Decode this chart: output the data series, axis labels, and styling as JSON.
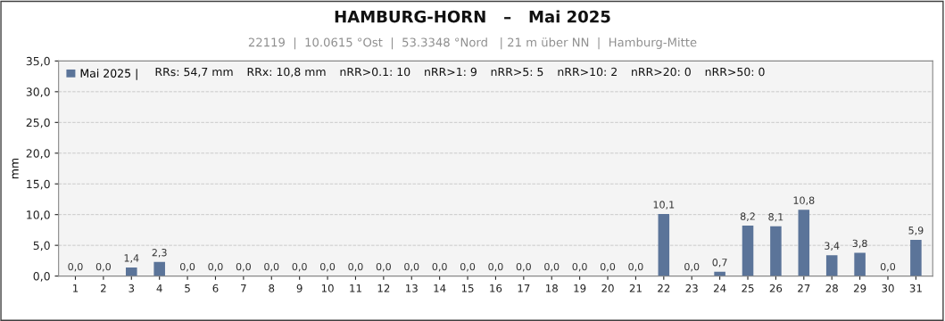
{
  "chart_data": {
    "type": "bar",
    "title": "HAMBURG-HORN   –   Mai 2025",
    "subtitle": "22119  |  10.0615 °Ost  |  53.3348 °Nord   | 21 m über NN  |  Hamburg-Mitte",
    "ylabel": "mm",
    "categories": [
      "1",
      "2",
      "3",
      "4",
      "5",
      "6",
      "7",
      "8",
      "9",
      "10",
      "11",
      "12",
      "13",
      "14",
      "15",
      "16",
      "17",
      "18",
      "19",
      "20",
      "21",
      "22",
      "23",
      "24",
      "25",
      "26",
      "27",
      "28",
      "29",
      "30",
      "31"
    ],
    "series": [
      {
        "name": "Mai 2025 |",
        "color": "#5b7499",
        "values": [
          0,
          0,
          1.4,
          2.3,
          0,
          0,
          0,
          0,
          0,
          0,
          0,
          0,
          0,
          0,
          0,
          0,
          0,
          0,
          0,
          0,
          0,
          10.1,
          0,
          0.7,
          8.2,
          8.1,
          10.8,
          3.4,
          3.8,
          0,
          5.9
        ],
        "value_labels": [
          "0,0",
          "0,0",
          "1,4",
          "2,3",
          "0,0",
          "0,0",
          "0,0",
          "0,0",
          "0,0",
          "0,0",
          "0,0",
          "0,0",
          "0,0",
          "0,0",
          "0,0",
          "0,0",
          "0,0",
          "0,0",
          "0,0",
          "0,0",
          "0,0",
          "10,1",
          "0,0",
          "0,7",
          "8,2",
          "8,1",
          "10,8",
          "3,4",
          "3,8",
          "0,0",
          "5,9"
        ]
      }
    ],
    "annotations": [
      "RRs: 54,7 mm",
      "RRx: 10,8 mm",
      "nRR>0.1: 10",
      "nRR>1: 9",
      "nRR>5: 5",
      "nRR>10: 2",
      "nRR>20: 0",
      "nRR>50: 0"
    ],
    "ylim": [
      0,
      35
    ],
    "yticks": [
      {
        "value": 0,
        "label": "0,0"
      },
      {
        "value": 5,
        "label": "5,0"
      },
      {
        "value": 10,
        "label": "10,0"
      },
      {
        "value": 15,
        "label": "15,0"
      },
      {
        "value": 20,
        "label": "20,0"
      },
      {
        "value": 25,
        "label": "25,0"
      },
      {
        "value": 30,
        "label": "30,0"
      },
      {
        "value": 35,
        "label": "35,0"
      }
    ],
    "grid": "y",
    "legend": "top left"
  }
}
